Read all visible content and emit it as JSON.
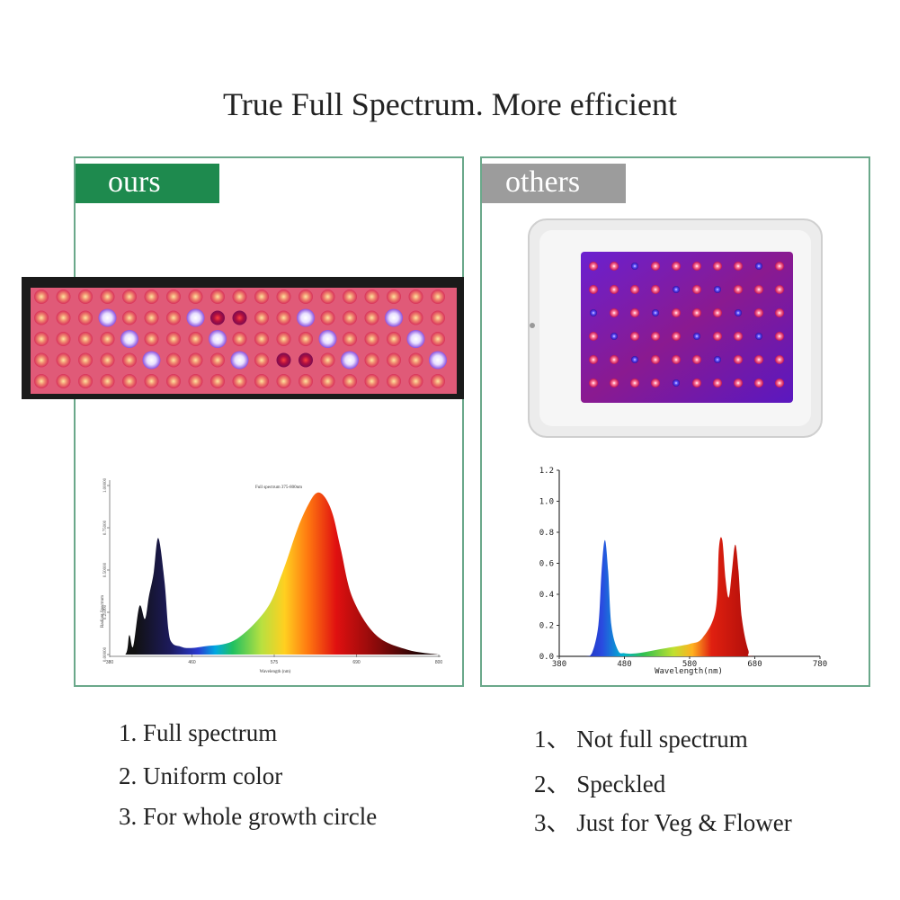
{
  "title": "True Full Spectrum. More efficient",
  "ours": {
    "tag": "ours",
    "features": [
      "1.  Full spectrum",
      "2.  Uniform color",
      "3.  For whole growth circle"
    ]
  },
  "others": {
    "tag": "others",
    "features": [
      "1、 Not full spectrum",
      "2、 Speckled",
      "3、 Just for Veg & Flower"
    ]
  },
  "colors": {
    "ours_tag": "#1e8a4e",
    "others_tag": "#9c9c9c",
    "panel_border": "#6aa88a"
  },
  "chart_data": [
    {
      "type": "area",
      "title": "Full spectrum 375-800nm",
      "xlabel": "Wavelength (nm)",
      "ylabel": "Radiant Spectrum",
      "xlim": [
        380,
        800
      ],
      "x_ticks": [
        "380",
        "460",
        "575",
        "690",
        "800"
      ],
      "y_ticks": [
        "0.00000",
        "0.25000",
        "0.50000",
        "0.75000",
        "1.00000"
      ],
      "x": [
        380,
        400,
        405,
        410,
        418,
        425,
        430,
        436,
        442,
        450,
        455,
        460,
        470,
        480,
        500,
        540,
        580,
        600,
        620,
        635,
        645,
        655,
        665,
        675,
        690,
        720,
        760,
        800
      ],
      "y": [
        0.0,
        0.0,
        0.12,
        0.05,
        0.3,
        0.22,
        0.36,
        0.5,
        0.72,
        0.45,
        0.15,
        0.07,
        0.05,
        0.04,
        0.05,
        0.09,
        0.28,
        0.5,
        0.78,
        0.94,
        1.0,
        0.97,
        0.86,
        0.65,
        0.35,
        0.12,
        0.03,
        0.0
      ]
    },
    {
      "type": "area",
      "title": "",
      "xlabel": "Wavelength(nm)",
      "ylabel": "",
      "xlim": [
        380,
        780
      ],
      "ylim": [
        0.0,
        1.2
      ],
      "x_ticks": [
        "380",
        "480",
        "580",
        "680",
        "780"
      ],
      "y_ticks": [
        "0.0",
        "0.2",
        "0.4",
        "0.6",
        "0.8",
        "1.0",
        "1.2"
      ],
      "x": [
        380,
        420,
        430,
        440,
        445,
        450,
        455,
        460,
        470,
        480,
        500,
        540,
        580,
        600,
        620,
        625,
        630,
        635,
        640,
        645,
        650,
        655,
        660,
        670,
        680,
        780
      ],
      "y": [
        0.0,
        0.0,
        0.02,
        0.2,
        0.55,
        0.75,
        0.55,
        0.2,
        0.04,
        0.02,
        0.02,
        0.05,
        0.08,
        0.12,
        0.3,
        0.7,
        0.75,
        0.5,
        0.38,
        0.55,
        0.72,
        0.55,
        0.25,
        0.04,
        0.0,
        0.0
      ]
    }
  ]
}
